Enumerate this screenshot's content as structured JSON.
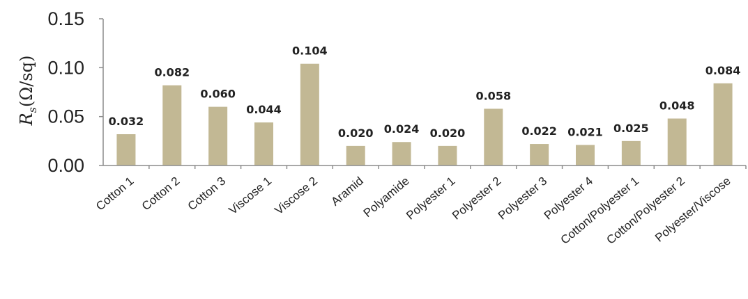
{
  "chart_data": {
    "type": "bar",
    "categories": [
      "Cotton 1",
      "Cotton 2",
      "Cotton 3",
      "Viscose 1",
      "Viscose 2",
      "Aramid",
      "Polyamide",
      "Polyester 1",
      "Polyester 2",
      "Polyester 3",
      "Polyester 4",
      "Cotton/Polyester 1",
      "Cotton/Polyester 2",
      "Polyester/Viscose"
    ],
    "values": [
      0.032,
      0.082,
      0.06,
      0.044,
      0.104,
      0.02,
      0.024,
      0.02,
      0.058,
      0.022,
      0.021,
      0.025,
      0.048,
      0.084
    ],
    "data_labels": [
      "0.032",
      "0.082",
      "0.060",
      "0.044",
      "0.104",
      "0.020",
      "0.024",
      "0.020",
      "0.058",
      "0.022",
      "0.021",
      "0.025",
      "0.048",
      "0.084"
    ],
    "ylim": [
      0,
      0.15
    ],
    "yticks": [
      "0.00",
      "0.05",
      "0.10",
      "0.15"
    ],
    "ylabel_symbol": "R",
    "ylabel_subscript": "s",
    "ylabel_unit": "(Ω/sq)",
    "bar_color": "#c2b894",
    "grid": false,
    "legend": "none"
  }
}
